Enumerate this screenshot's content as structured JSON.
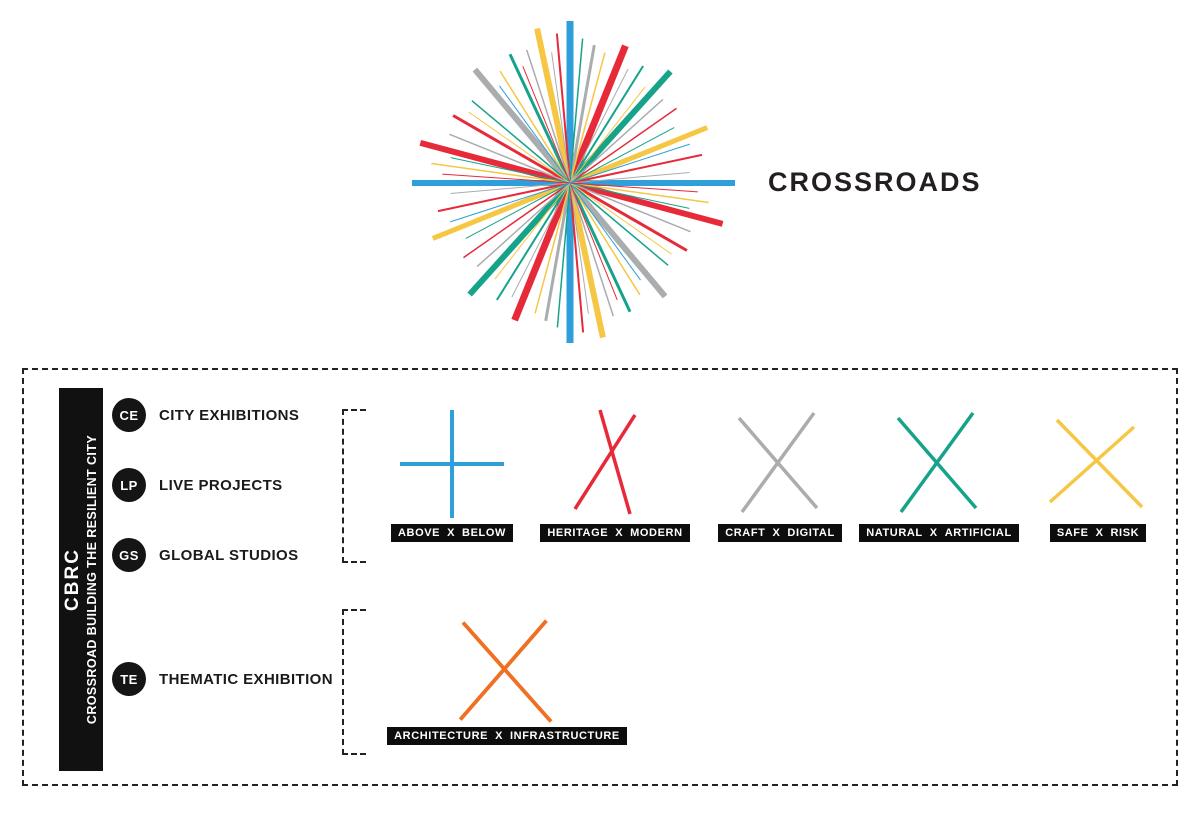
{
  "title": "CROSSROADS",
  "colors": {
    "blue": "#2E9FD9",
    "red": "#E62A39",
    "yellow": "#F5C744",
    "teal": "#16A38A",
    "gray": "#AAACAE",
    "orange": "#EF7022",
    "black": "#111111"
  },
  "starburst": {
    "rays": [
      [
        90,
        162,
        7,
        "blue"
      ],
      [
        270,
        160,
        7,
        "blue"
      ],
      [
        0,
        165,
        6,
        "blue"
      ],
      [
        180,
        158,
        6,
        "blue"
      ],
      [
        68,
        148,
        7,
        "red"
      ],
      [
        248,
        148,
        7,
        "red"
      ],
      [
        345,
        158,
        6,
        "red"
      ],
      [
        165,
        155,
        6,
        "red"
      ],
      [
        48,
        150,
        6,
        "teal"
      ],
      [
        228,
        150,
        6,
        "teal"
      ],
      [
        130,
        148,
        6,
        "gray"
      ],
      [
        310,
        148,
        6,
        "gray"
      ],
      [
        102,
        158,
        6,
        "yellow"
      ],
      [
        282,
        158,
        6,
        "yellow"
      ],
      [
        22,
        148,
        5,
        "yellow"
      ],
      [
        202,
        148,
        5,
        "yellow"
      ],
      [
        80,
        140,
        3,
        "gray"
      ],
      [
        260,
        140,
        3,
        "gray"
      ],
      [
        115,
        142,
        3,
        "teal"
      ],
      [
        295,
        142,
        3,
        "teal"
      ],
      [
        150,
        135,
        3,
        "red"
      ],
      [
        330,
        135,
        3,
        "red"
      ],
      [
        58,
        138,
        2,
        "teal"
      ],
      [
        238,
        138,
        2,
        "teal"
      ],
      [
        95,
        150,
        2,
        "red"
      ],
      [
        275,
        150,
        2,
        "red"
      ],
      [
        12,
        135,
        2,
        "red"
      ],
      [
        192,
        135,
        2,
        "red"
      ],
      [
        35,
        130,
        1.5,
        "red"
      ],
      [
        215,
        130,
        1.5,
        "red"
      ],
      [
        42,
        125,
        1.5,
        "gray"
      ],
      [
        222,
        125,
        1.5,
        "gray"
      ],
      [
        75,
        135,
        1.5,
        "yellow"
      ],
      [
        255,
        135,
        1.5,
        "yellow"
      ],
      [
        85,
        145,
        1.5,
        "teal"
      ],
      [
        265,
        145,
        1.5,
        "teal"
      ],
      [
        108,
        140,
        1.5,
        "gray"
      ],
      [
        288,
        140,
        1.5,
        "gray"
      ],
      [
        122,
        132,
        1.5,
        "yellow"
      ],
      [
        302,
        132,
        1.5,
        "yellow"
      ],
      [
        140,
        128,
        1.5,
        "teal"
      ],
      [
        320,
        128,
        1.5,
        "teal"
      ],
      [
        158,
        130,
        1.5,
        "gray"
      ],
      [
        338,
        130,
        1.5,
        "gray"
      ],
      [
        172,
        140,
        1.5,
        "yellow"
      ],
      [
        352,
        140,
        1.5,
        "yellow"
      ],
      [
        5,
        120,
        1,
        "gray"
      ],
      [
        185,
        120,
        1,
        "gray"
      ],
      [
        28,
        118,
        1,
        "teal"
      ],
      [
        208,
        118,
        1,
        "teal"
      ],
      [
        52,
        122,
        1,
        "yellow"
      ],
      [
        232,
        122,
        1,
        "yellow"
      ],
      [
        63,
        128,
        1,
        "gray"
      ],
      [
        243,
        128,
        1,
        "gray"
      ],
      [
        98,
        132,
        1,
        "gray"
      ],
      [
        278,
        132,
        1,
        "gray"
      ],
      [
        112,
        126,
        1,
        "red"
      ],
      [
        292,
        126,
        1,
        "red"
      ],
      [
        126,
        120,
        1,
        "blue"
      ],
      [
        306,
        120,
        1,
        "blue"
      ],
      [
        145,
        124,
        1,
        "yellow"
      ],
      [
        325,
        124,
        1,
        "yellow"
      ],
      [
        168,
        122,
        1,
        "teal"
      ],
      [
        348,
        122,
        1,
        "teal"
      ],
      [
        176,
        128,
        1,
        "red"
      ],
      [
        356,
        128,
        1,
        "red"
      ],
      [
        18,
        126,
        1,
        "blue"
      ],
      [
        198,
        126,
        1,
        "blue"
      ]
    ]
  },
  "sidebar": {
    "acronym": "CBRC",
    "subtitle": "CROSSROAD BUILDING THE RESILIENT CITY"
  },
  "programs": [
    {
      "code": "CE",
      "label": "CITY EXHIBITIONS"
    },
    {
      "code": "LP",
      "label": "LIVE PROJECTS"
    },
    {
      "code": "GS",
      "label": "GLOBAL STUDIOS"
    },
    {
      "code": "TE",
      "label": "THEMATIC EXHIBITION"
    }
  ],
  "x_separator": "X",
  "crossings": [
    {
      "left": "ABOVE",
      "right": "BELOW",
      "color": "blue",
      "type": "plus"
    },
    {
      "left": "HERITAGE",
      "right": "MODERN",
      "color": "red",
      "type": "x-narrow"
    },
    {
      "left": "CRAFT",
      "right": "DIGITAL",
      "color": "gray",
      "type": "x"
    },
    {
      "left": "NATURAL",
      "right": "ARTIFICIAL",
      "color": "teal",
      "type": "x"
    },
    {
      "left": "SAFE",
      "right": "RISK",
      "color": "yellow",
      "type": "x-wide"
    }
  ],
  "thematic_crossing": {
    "left": "ARCHITECTURE",
    "right": "INFRASTRUCTURE",
    "color": "orange",
    "type": "x-big"
  }
}
